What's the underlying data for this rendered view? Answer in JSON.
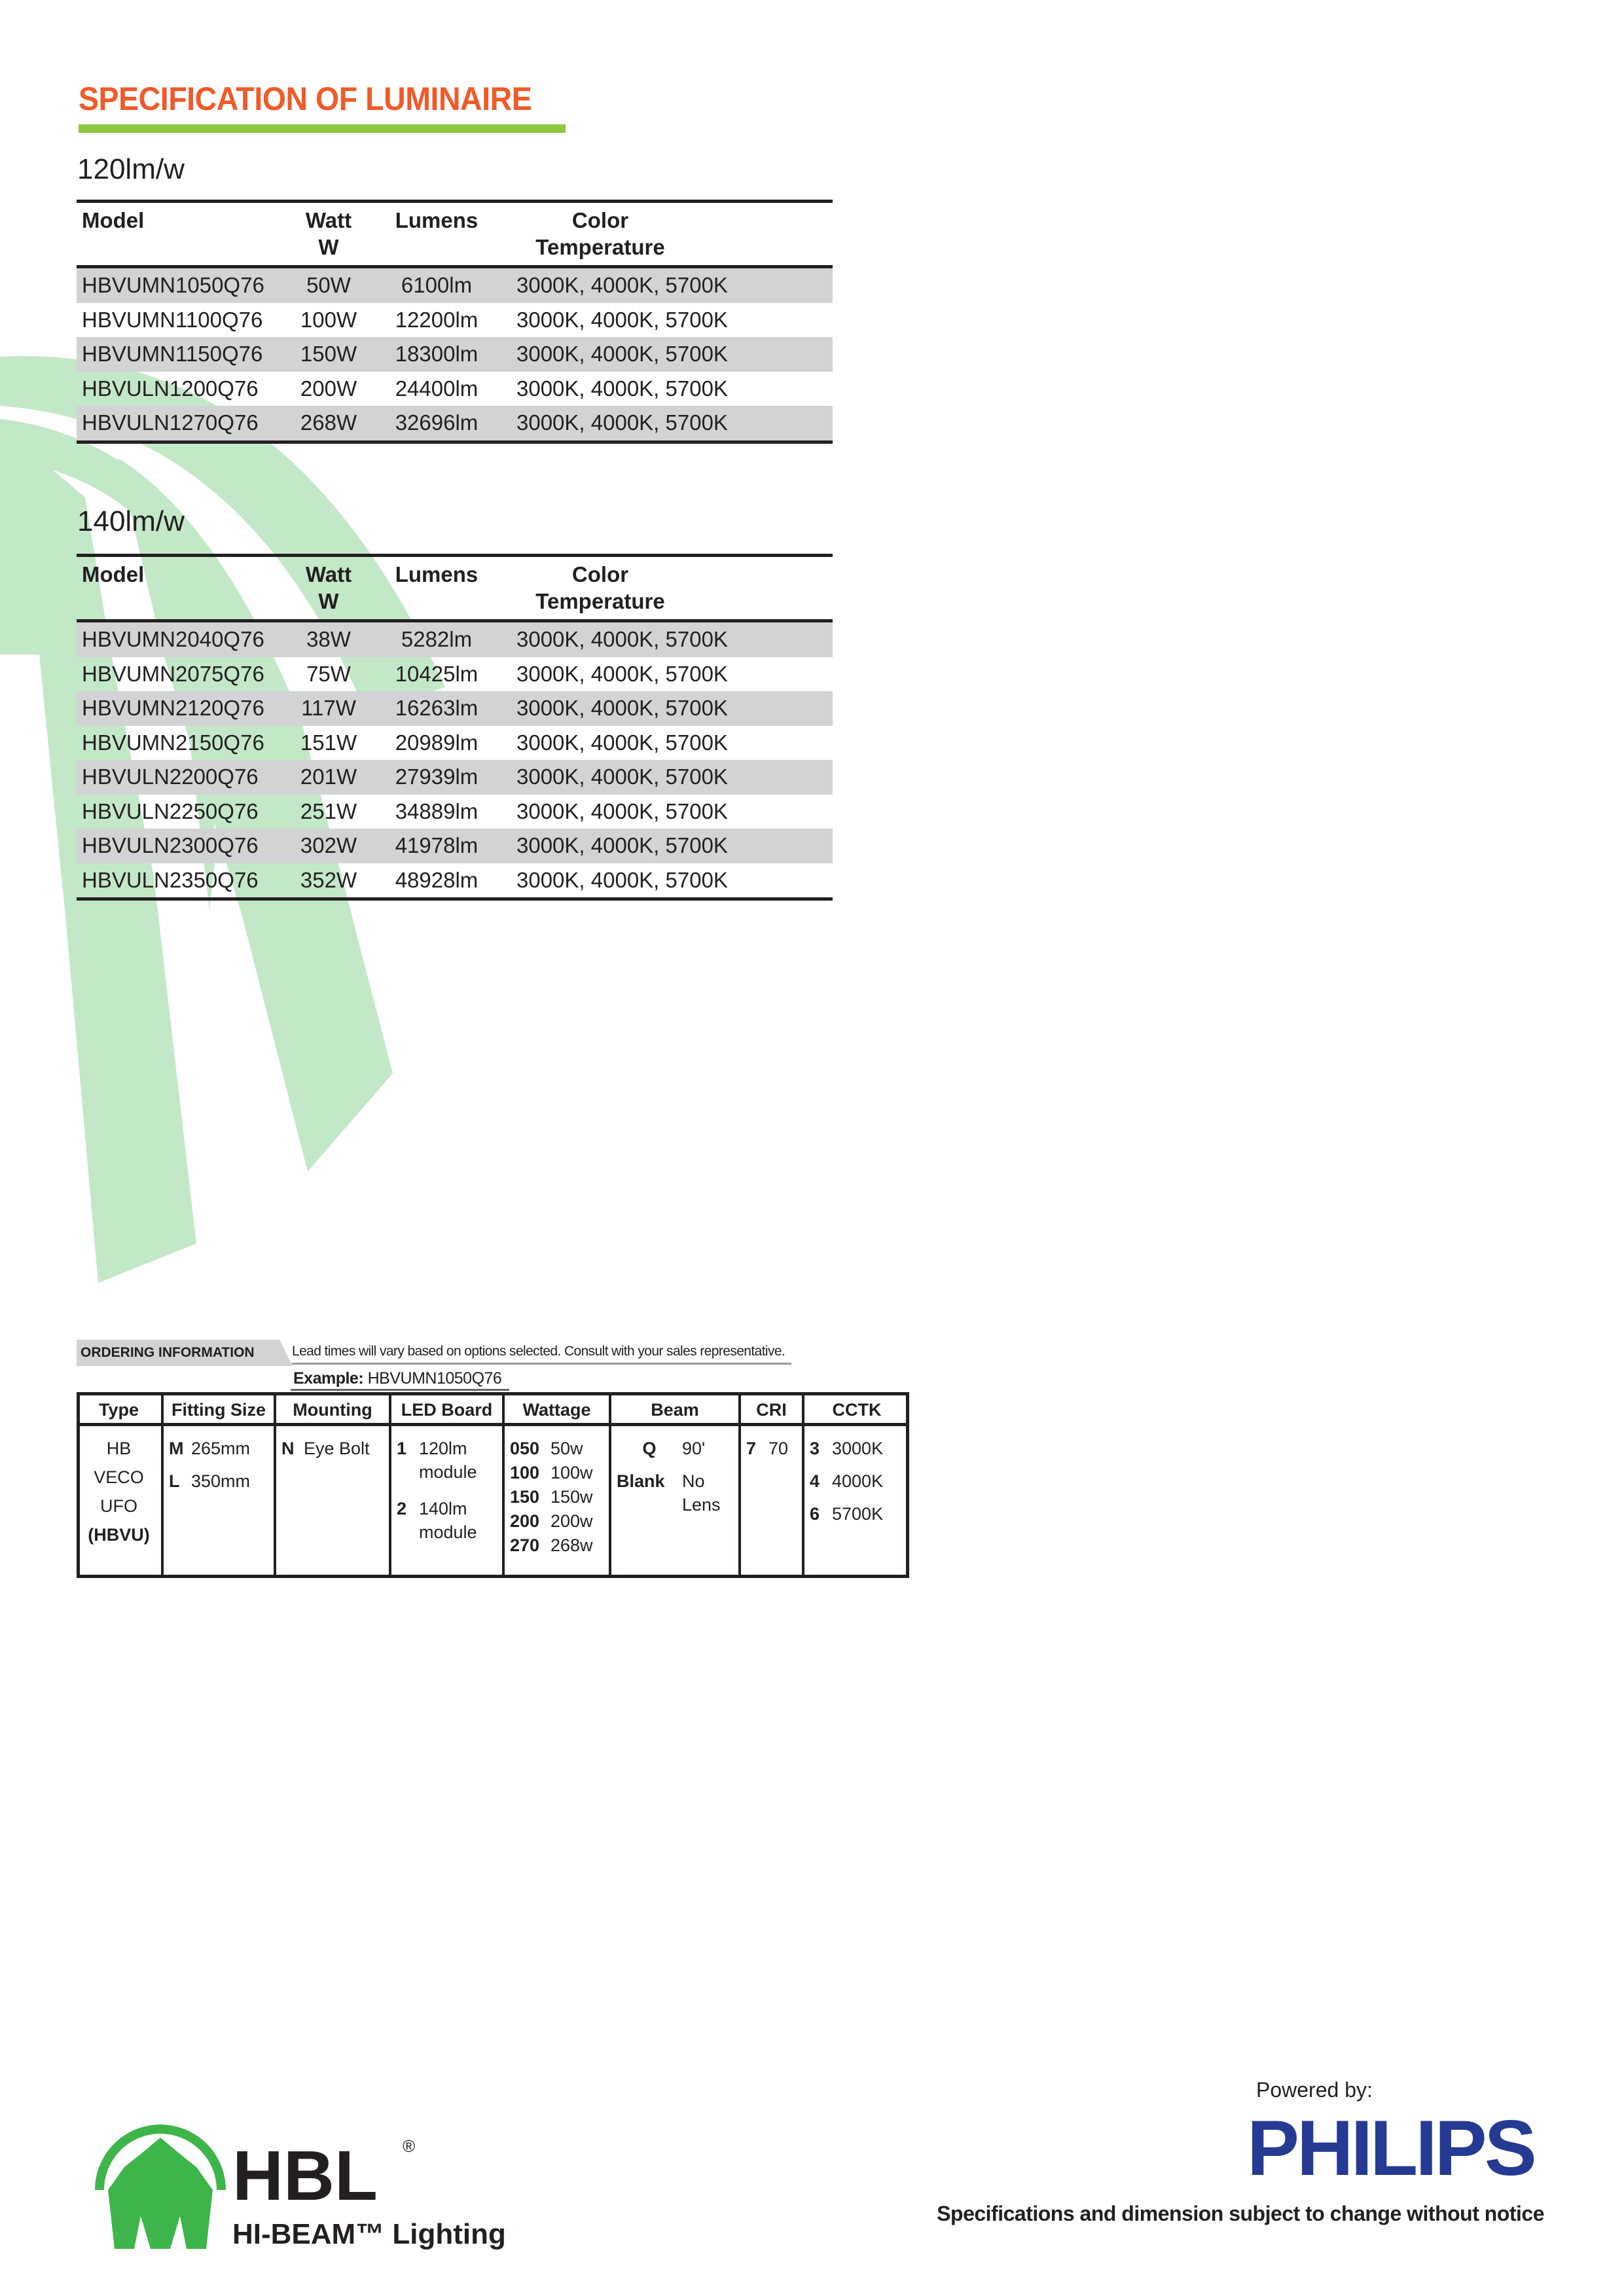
{
  "title": "SPECIFICATION OF LUMINAIRE",
  "colors": {
    "title": "#f05a28",
    "title_bar": "#8dc63f",
    "background_graphic": "#c3e8c8",
    "row_shade": "#d1d3d4",
    "philips_blue": "#253a93",
    "hbl_green": "#3db54a"
  },
  "tables": [
    {
      "heading": "120lm/w",
      "columns": {
        "model": "Model",
        "watt": "Watt",
        "watt_unit": "W",
        "lumens": "Lumens",
        "color": "Color",
        "color2": "Temperature"
      },
      "rows": [
        {
          "model": "HBVUMN1050Q76",
          "watt": "50W",
          "lumens": "6100lm",
          "color": "3000K, 4000K, 5700K"
        },
        {
          "model": "HBVUMN1100Q76",
          "watt": "100W",
          "lumens": "12200lm",
          "color": "3000K, 4000K, 5700K"
        },
        {
          "model": "HBVUMN1150Q76",
          "watt": "150W",
          "lumens": "18300lm",
          "color": "3000K, 4000K, 5700K"
        },
        {
          "model": "HBVULN1200Q76",
          "watt": "200W",
          "lumens": "24400lm",
          "color": "3000K, 4000K, 5700K"
        },
        {
          "model": "HBVULN1270Q76",
          "watt": "268W",
          "lumens": "32696lm",
          "color": "3000K, 4000K, 5700K"
        }
      ]
    },
    {
      "heading": "140lm/w",
      "columns": {
        "model": "Model",
        "watt": "Watt",
        "watt_unit": "W",
        "lumens": "Lumens",
        "color": "Color",
        "color2": "Temperature"
      },
      "rows": [
        {
          "model": "HBVUMN2040Q76",
          "watt": "38W",
          "lumens": "5282lm",
          "color": "3000K, 4000K, 5700K"
        },
        {
          "model": "HBVUMN2075Q76",
          "watt": "75W",
          "lumens": "10425lm",
          "color": "3000K, 4000K, 5700K"
        },
        {
          "model": "HBVUMN2120Q76",
          "watt": "117W",
          "lumens": "16263lm",
          "color": "3000K, 4000K, 5700K"
        },
        {
          "model": "HBVUMN2150Q76",
          "watt": "151W",
          "lumens": "20989lm",
          "color": "3000K, 4000K, 5700K"
        },
        {
          "model": "HBVULN2200Q76",
          "watt": "201W",
          "lumens": "27939lm",
          "color": "3000K, 4000K, 5700K"
        },
        {
          "model": "HBVULN2250Q76",
          "watt": "251W",
          "lumens": "34889lm",
          "color": "3000K, 4000K, 5700K"
        },
        {
          "model": "HBVULN2300Q76",
          "watt": "302W",
          "lumens": "41978lm",
          "color": "3000K, 4000K, 5700K"
        },
        {
          "model": "HBVULN2350Q76",
          "watt": "352W",
          "lumens": "48928lm",
          "color": "3000K, 4000K, 5700K"
        }
      ]
    }
  ],
  "ordering": {
    "label": "ORDERING INFORMATION",
    "note": "Lead times will vary based on options selected. Consult with your sales representative.",
    "example_label": "Example:",
    "example_value": "HBVUMN1050Q76",
    "columns": [
      {
        "header": "Type",
        "lines": [
          [
            "",
            "HB"
          ],
          [
            "",
            "VECO"
          ],
          [
            "",
            "UFO"
          ],
          [
            "",
            "(HBVU)"
          ]
        ]
      },
      {
        "header": "Fitting Size",
        "lines": [
          [
            "M",
            "265mm"
          ],
          [
            "L",
            "350mm"
          ]
        ]
      },
      {
        "header": "Mounting",
        "lines": [
          [
            "N",
            "Eye Bolt"
          ]
        ]
      },
      {
        "header": "LED Board",
        "lines": [
          [
            "1",
            "120lm module"
          ],
          [
            "2",
            "140lm module"
          ]
        ]
      },
      {
        "header": "Wattage",
        "lines": [
          [
            "050",
            "50w"
          ],
          [
            "100",
            "100w"
          ],
          [
            "150",
            "150w"
          ],
          [
            "200",
            "200w"
          ],
          [
            "270",
            "268w"
          ]
        ]
      },
      {
        "header": "Beam",
        "lines": [
          [
            "Q",
            "90'"
          ],
          [
            "Blank",
            "No Lens"
          ]
        ]
      },
      {
        "header": "CRI",
        "lines": [
          [
            "7",
            "70"
          ]
        ]
      },
      {
        "header": "CCTK",
        "lines": [
          [
            "3",
            "3000K"
          ],
          [
            "4",
            "4000K"
          ],
          [
            "6",
            "5700K"
          ]
        ]
      }
    ]
  },
  "footer": {
    "hbl_logo": "HBL",
    "hbl_registered": "®",
    "hbl_tagline": "HI-BEAM™ Lighting",
    "powered_by": "Powered by:",
    "philips_logo": "PHILIPS",
    "disclaimer": "Specifications and dimension subject to change without notice"
  }
}
